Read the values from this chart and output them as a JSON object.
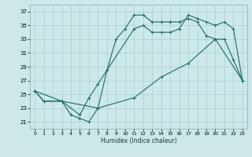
{
  "xlabel": "Humidex (Indice chaleur)",
  "bg_color": "#cce8e8",
  "grid_color": "#aacfcf",
  "line_color": "#1e6b5e",
  "xlim": [
    -0.5,
    23.5
  ],
  "ylim": [
    20,
    38
  ],
  "xticks": [
    0,
    1,
    2,
    3,
    4,
    5,
    6,
    7,
    8,
    9,
    10,
    11,
    12,
    13,
    14,
    15,
    16,
    17,
    18,
    19,
    20,
    21,
    22,
    23
  ],
  "yticks": [
    21,
    23,
    25,
    27,
    29,
    31,
    33,
    35,
    37
  ],
  "line1_x": [
    0,
    1,
    3,
    4,
    5,
    6,
    7,
    8,
    9,
    10,
    11,
    12,
    13,
    14,
    15,
    16,
    17,
    18,
    19,
    20,
    21,
    22,
    23
  ],
  "line1_y": [
    25.5,
    24.0,
    24.0,
    22.0,
    21.5,
    21.0,
    23.0,
    28.5,
    33.0,
    34.5,
    36.5,
    36.5,
    35.5,
    35.5,
    35.5,
    35.5,
    36.0,
    35.5,
    33.5,
    33.0,
    33.0,
    30.0,
    27.0
  ],
  "line2_x": [
    0,
    1,
    3,
    5,
    6,
    7,
    11,
    12,
    13,
    14,
    15,
    16,
    17,
    18,
    19,
    20,
    21,
    22,
    23
  ],
  "line2_y": [
    25.5,
    24.0,
    24.0,
    22.0,
    24.5,
    26.5,
    34.5,
    35.0,
    34.0,
    34.0,
    34.0,
    34.5,
    36.5,
    36.0,
    35.5,
    35.0,
    35.5,
    34.5,
    27.0
  ],
  "line3_x": [
    0,
    3,
    7,
    11,
    14,
    17,
    20,
    23
  ],
  "line3_y": [
    25.5,
    24.0,
    23.0,
    24.5,
    27.5,
    29.5,
    33.0,
    27.0
  ]
}
